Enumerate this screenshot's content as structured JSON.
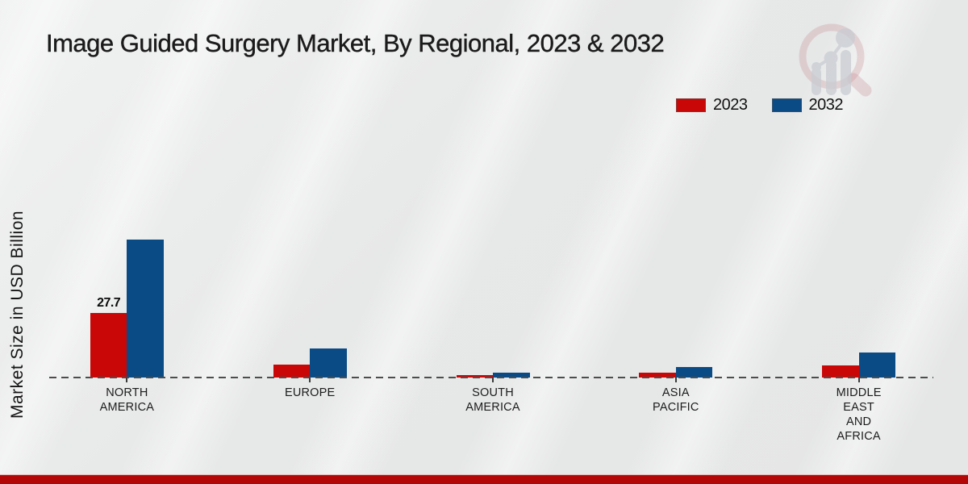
{
  "title": "Image Guided Surgery Market, By Regional, 2023 & 2032",
  "y_axis_label": "Market Size in USD Billion",
  "legend": {
    "items": [
      {
        "label": "2023",
        "color": "#c90707"
      },
      {
        "label": "2032",
        "color": "#0a4a85"
      }
    ]
  },
  "logo": {
    "name": "market-research-magnifier-logo",
    "ring_color": "#d9aab0",
    "bars_color": "#c9ccd2"
  },
  "footer": {
    "bar_color": "#b30606"
  },
  "chart_data": {
    "type": "bar",
    "title": "Image Guided Surgery Market, By Regional, 2023 & 2032",
    "ylabel": "Market Size in USD Billion",
    "categories": [
      "NORTH\nAMERICA",
      "EUROPE",
      "SOUTH\nAMERICA",
      "ASIA\nPACIFIC",
      "MIDDLE\nEAST\nAND\nAFRICA"
    ],
    "series": [
      {
        "name": "2023",
        "color": "#c90707",
        "values": [
          27.7,
          5.5,
          1.0,
          2.1,
          5.2
        ]
      },
      {
        "name": "2032",
        "color": "#0a4a85",
        "values": [
          59.2,
          12.4,
          2.2,
          4.5,
          10.7
        ]
      }
    ],
    "data_labels": [
      {
        "series": "2023",
        "category_index": 0,
        "text": "27.7"
      }
    ],
    "baseline_value": 0,
    "axis_line_style": "dashed",
    "grid": false,
    "legend_position": "top-right"
  }
}
